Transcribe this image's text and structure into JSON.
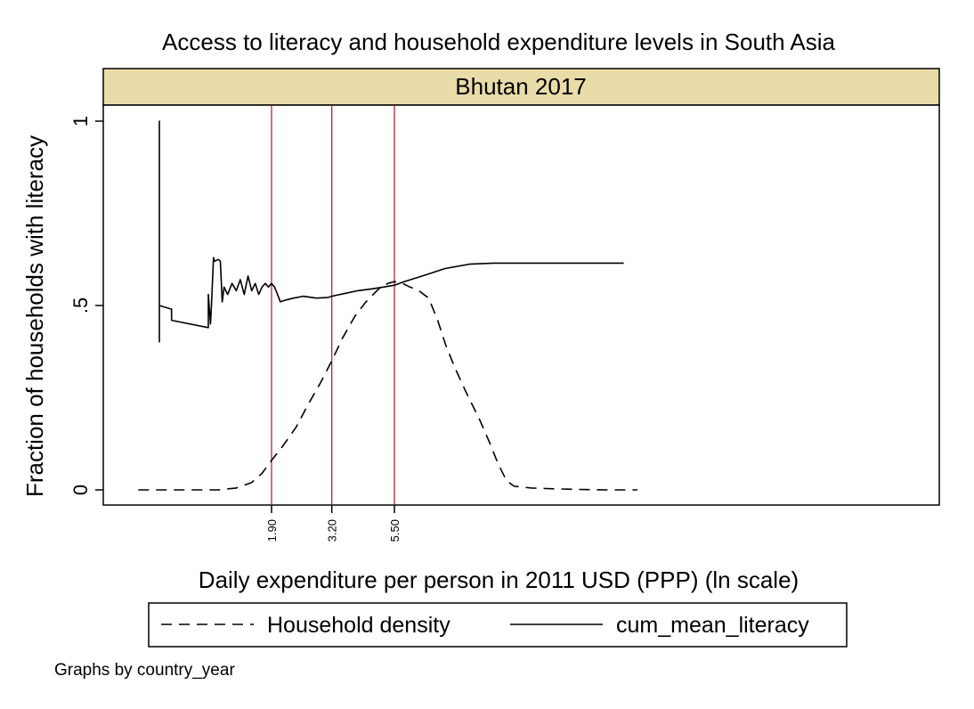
{
  "chart_data": {
    "type": "line",
    "title": "Access to literacy and household expenditure levels in South Asia",
    "panel_label": "Bhutan 2017",
    "xlabel": "Daily expenditure per person in 2011 USD (PPP) (ln scale)",
    "ylabel": "Fraction of households with literacy",
    "note": "Graphs by country_year",
    "x_scale": "log",
    "x_ticks": [
      "1.90",
      "3.20",
      "5.50"
    ],
    "x_tick_values": [
      1.9,
      3.2,
      5.5
    ],
    "y_ticks": [
      "0",
      ".5",
      "1"
    ],
    "y_tick_values": [
      0,
      0.5,
      1
    ],
    "ylim": [
      -0.04,
      1.04
    ],
    "xlim": [
      0.5,
      40
    ],
    "reference_lines": [
      1.9,
      3.2,
      5.5
    ],
    "colors": {
      "reference_line": "#a01a2a",
      "panel_header": "#e9dca8",
      "series": "#000000"
    },
    "legend_position": "bottom",
    "series": [
      {
        "name": "Household density",
        "style": "dashed",
        "x": [
          0.6,
          0.8,
          1.0,
          1.2,
          1.4,
          1.6,
          1.75,
          1.9,
          2.1,
          2.35,
          2.6,
          2.9,
          3.2,
          3.5,
          3.9,
          4.3,
          4.8,
          5.2,
          5.5,
          5.9,
          6.3,
          6.8,
          7.4,
          8.0,
          8.6,
          9.3,
          10.3,
          11.5,
          12.5,
          13.5,
          14.5,
          15.5,
          18,
          22,
          28,
          35,
          45
        ],
        "values": [
          0.0,
          0.0,
          0.0,
          0.0,
          0.005,
          0.02,
          0.045,
          0.08,
          0.12,
          0.17,
          0.23,
          0.29,
          0.35,
          0.41,
          0.47,
          0.51,
          0.545,
          0.56,
          0.565,
          0.56,
          0.55,
          0.54,
          0.52,
          0.46,
          0.39,
          0.33,
          0.26,
          0.19,
          0.13,
          0.07,
          0.025,
          0.01,
          0.005,
          0.003,
          0.001,
          0.0,
          0.0
        ]
      },
      {
        "name": "cum_mean_literacy",
        "style": "solid",
        "x": [
          0.72,
          0.72,
          0.72,
          0.72,
          0.8,
          0.8,
          1.1,
          1.1,
          1.12,
          1.13,
          1.15,
          1.16,
          1.2,
          1.22,
          1.24,
          1.26,
          1.3,
          1.35,
          1.4,
          1.45,
          1.5,
          1.55,
          1.6,
          1.65,
          1.7,
          1.75,
          1.8,
          1.85,
          1.9,
          1.95,
          2.0,
          2.05,
          2.15,
          2.3,
          2.5,
          2.8,
          3.1,
          3.2,
          3.6,
          4.0,
          4.5,
          5.0,
          5.5,
          6.0,
          7.0,
          8.5,
          10.5,
          13,
          16,
          22,
          30,
          40
        ],
        "values": [
          0.4,
          1.0,
          0.5,
          0.5,
          0.49,
          0.46,
          0.44,
          0.53,
          0.45,
          0.5,
          0.63,
          0.62,
          0.625,
          0.62,
          0.51,
          0.55,
          0.53,
          0.56,
          0.54,
          0.57,
          0.53,
          0.58,
          0.54,
          0.56,
          0.53,
          0.55,
          0.56,
          0.55,
          0.56,
          0.55,
          0.53,
          0.51,
          0.515,
          0.52,
          0.525,
          0.52,
          0.522,
          0.525,
          0.533,
          0.54,
          0.545,
          0.55,
          0.555,
          0.565,
          0.58,
          0.6,
          0.612,
          0.615,
          0.615,
          0.615,
          0.615,
          0.615
        ]
      }
    ]
  }
}
